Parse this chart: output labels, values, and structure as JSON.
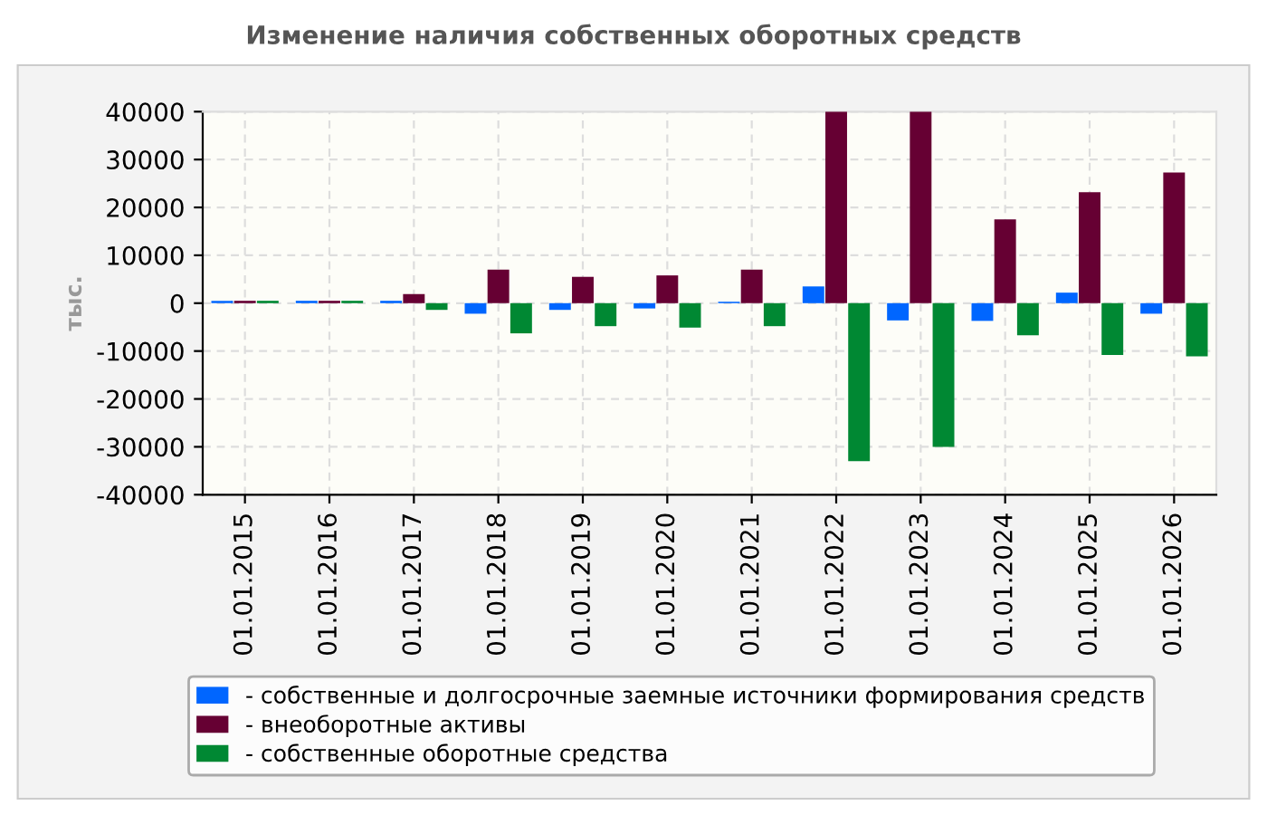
{
  "chart_data": {
    "type": "bar",
    "title": "Изменение наличия собственных оборотных средств",
    "ylabel": "тыс.",
    "categories": [
      "01.01.2015",
      "01.01.2016",
      "01.01.2017",
      "01.01.2018",
      "01.01.2019",
      "01.01.2020",
      "01.01.2021",
      "01.01.2022",
      "01.01.2023",
      "01.01.2024",
      "01.01.2025",
      "01.01.2026"
    ],
    "series": [
      {
        "name": "- собственные и долгосрочные заемные источники формирования средств",
        "color": "#0066ff",
        "values": [
          500,
          500,
          500,
          -2200,
          -1400,
          -1100,
          300,
          3500,
          -3600,
          -3700,
          2200,
          -2200
        ]
      },
      {
        "name": "- внеоборотные активы",
        "color": "#660033",
        "values": [
          500,
          500,
          1900,
          7000,
          5500,
          5800,
          7000,
          40000,
          40000,
          17500,
          23200,
          27300
        ]
      },
      {
        "name": "- собственные оборотные средства",
        "color": "#008833",
        "values": [
          500,
          500,
          -1400,
          -6300,
          -4800,
          -5100,
          -4800,
          -33000,
          -30000,
          -6700,
          -10800,
          -11100
        ]
      }
    ],
    "ylim": [
      -40000,
      40000
    ],
    "yticks": [
      -40000,
      -30000,
      -20000,
      -10000,
      0,
      10000,
      20000,
      30000,
      40000
    ],
    "grid": true,
    "legend": "bottom"
  }
}
